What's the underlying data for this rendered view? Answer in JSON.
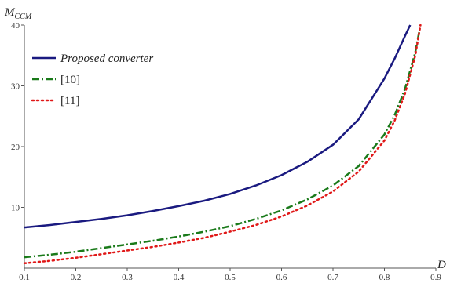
{
  "chart_data": {
    "type": "line",
    "title": "",
    "xlabel": "D",
    "ylabel": {
      "main": "M",
      "sub": "CCM"
    },
    "xlim": [
      0.1,
      0.9
    ],
    "ylim": [
      0,
      40
    ],
    "xticks": [
      "0.1",
      "0.2",
      "0.3",
      "0.4",
      "0.5",
      "0.6",
      "0.7",
      "0.8",
      "0.9"
    ],
    "yticks": [
      "10",
      "20",
      "30",
      "40"
    ],
    "grid": false,
    "legend_position": "top-left",
    "series": [
      {
        "name": "Proposed converter",
        "color": "#1a1a80",
        "style": "solid",
        "italic": true,
        "x": [
          0.1,
          0.15,
          0.2,
          0.25,
          0.3,
          0.35,
          0.4,
          0.45,
          0.5,
          0.55,
          0.6,
          0.65,
          0.7,
          0.75,
          0.8,
          0.82,
          0.84,
          0.85
        ],
        "y": [
          6.7,
          7.1,
          7.6,
          8.1,
          8.7,
          9.4,
          10.2,
          11.1,
          12.2,
          13.6,
          15.3,
          17.5,
          20.3,
          24.5,
          31.2,
          34.5,
          38.2,
          40
        ]
      },
      {
        "name": "[10]",
        "color": "#1a7a1a",
        "style": "dashdot",
        "italic": false,
        "x": [
          0.1,
          0.15,
          0.2,
          0.25,
          0.3,
          0.35,
          0.4,
          0.45,
          0.5,
          0.55,
          0.6,
          0.65,
          0.7,
          0.75,
          0.8,
          0.82,
          0.84,
          0.86,
          0.87
        ],
        "y": [
          1.8,
          2.2,
          2.7,
          3.3,
          3.9,
          4.5,
          5.2,
          6.0,
          6.9,
          8.1,
          9.5,
          11.3,
          13.6,
          16.8,
          22.0,
          25.2,
          29.5,
          35.5,
          40
        ]
      },
      {
        "name": "[11]",
        "color": "#e01818",
        "style": "dotted",
        "italic": false,
        "x": [
          0.1,
          0.15,
          0.2,
          0.25,
          0.3,
          0.35,
          0.4,
          0.45,
          0.5,
          0.55,
          0.6,
          0.65,
          0.7,
          0.75,
          0.8,
          0.82,
          0.84,
          0.86,
          0.87
        ],
        "y": [
          0.8,
          1.2,
          1.7,
          2.3,
          2.9,
          3.5,
          4.2,
          5.0,
          6.0,
          7.1,
          8.5,
          10.3,
          12.6,
          15.9,
          21.0,
          24.3,
          28.7,
          35.0,
          40
        ]
      }
    ]
  }
}
